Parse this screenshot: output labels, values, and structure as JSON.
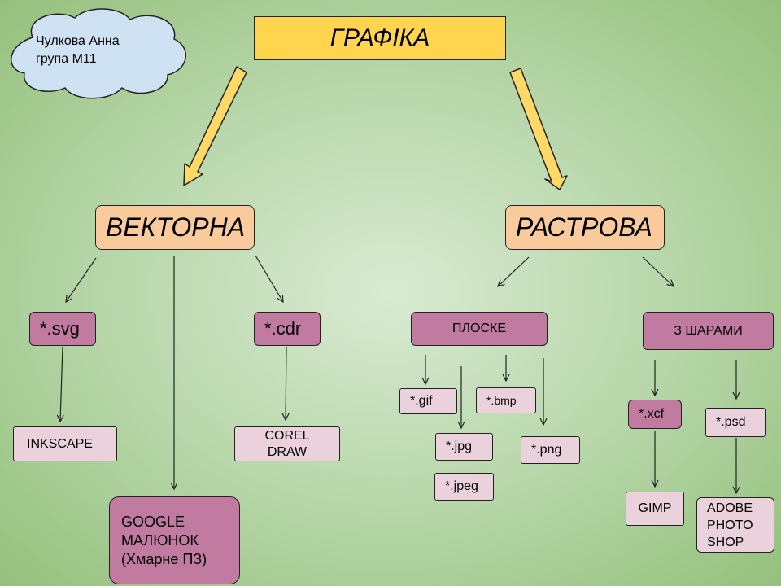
{
  "author": {
    "line1": "Чулкова Анна",
    "line2": "група М11"
  },
  "title": "ГРАФІКА",
  "vector": {
    "label": "ВЕКТОРНА",
    "formats": {
      "svg": "*.svg",
      "cdr": "*.cdr"
    },
    "programs": {
      "inkscape": "INKSCAPE",
      "corel": [
        "COREL",
        "DRAW"
      ],
      "google": [
        "GOOGLE",
        "МАЛЮНОК",
        "(Хмарне ПЗ)"
      ]
    }
  },
  "raster": {
    "label": "РАСТРОВА",
    "flat": {
      "label": "ПЛОСКЕ",
      "formats": {
        "gif": "*.gif",
        "bmp": "*.bmp",
        "jpg": "*.jpg",
        "jpeg": "*.jpeg",
        "png": "*.png"
      }
    },
    "layered": {
      "label": "З ШАРАМИ",
      "formats": {
        "xcf": "*.xcf",
        "psd": "*.psd"
      },
      "programs": {
        "gimp": "GIMP",
        "adobe": [
          "ADOBE",
          "PHOTO",
          "SHOP"
        ]
      }
    }
  }
}
